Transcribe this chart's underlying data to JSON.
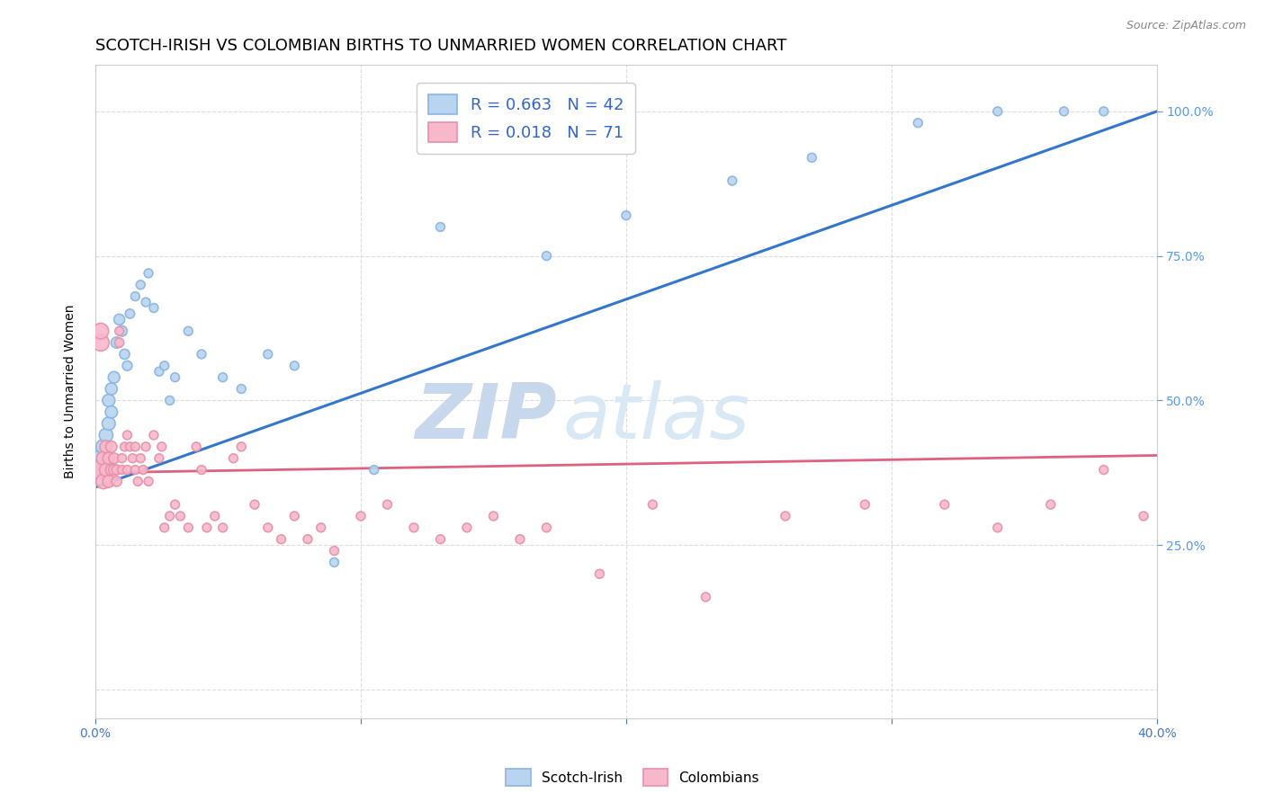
{
  "title": "SCOTCH-IRISH VS COLOMBIAN BIRTHS TO UNMARRIED WOMEN CORRELATION CHART",
  "source": "Source: ZipAtlas.com",
  "xlim": [
    0.0,
    0.4
  ],
  "ylim": [
    -0.05,
    1.08
  ],
  "watermark_zip": "ZIP",
  "watermark_atlas": "atlas",
  "series": [
    {
      "name": "Scotch-Irish",
      "R": 0.663,
      "N": 42,
      "color_fill": "#b8d4f0",
      "color_edge": "#8ab4e0",
      "trend_color": "#3377cc",
      "trend_dash": "solid",
      "x": [
        0.001,
        0.002,
        0.003,
        0.003,
        0.004,
        0.005,
        0.005,
        0.006,
        0.006,
        0.007,
        0.008,
        0.009,
        0.01,
        0.011,
        0.012,
        0.013,
        0.015,
        0.017,
        0.019,
        0.02,
        0.022,
        0.024,
        0.026,
        0.028,
        0.03,
        0.035,
        0.04,
        0.048,
        0.055,
        0.065,
        0.075,
        0.09,
        0.105,
        0.13,
        0.17,
        0.2,
        0.24,
        0.27,
        0.31,
        0.34,
        0.365,
        0.38
      ],
      "y": [
        0.38,
        0.4,
        0.38,
        0.42,
        0.44,
        0.46,
        0.5,
        0.48,
        0.52,
        0.54,
        0.6,
        0.64,
        0.62,
        0.58,
        0.56,
        0.65,
        0.68,
        0.7,
        0.67,
        0.72,
        0.66,
        0.55,
        0.56,
        0.5,
        0.54,
        0.62,
        0.58,
        0.54,
        0.52,
        0.58,
        0.56,
        0.22,
        0.38,
        0.8,
        0.75,
        0.82,
        0.88,
        0.92,
        0.98,
        1.0,
        1.0,
        1.0
      ],
      "sizes": [
        200,
        180,
        160,
        140,
        120,
        110,
        100,
        95,
        90,
        85,
        80,
        75,
        70,
        65,
        60,
        55,
        50,
        50,
        50,
        50,
        50,
        50,
        50,
        50,
        50,
        50,
        50,
        50,
        50,
        50,
        50,
        50,
        50,
        50,
        50,
        50,
        50,
        50,
        50,
        50,
        50,
        50
      ]
    },
    {
      "name": "Colombians",
      "R": 0.018,
      "N": 71,
      "color_fill": "#f8b8cc",
      "color_edge": "#e890a8",
      "trend_color": "#e06080",
      "trend_dash": "solid",
      "x": [
        0.001,
        0.002,
        0.002,
        0.003,
        0.003,
        0.004,
        0.004,
        0.005,
        0.005,
        0.006,
        0.006,
        0.007,
        0.007,
        0.008,
        0.008,
        0.009,
        0.009,
        0.01,
        0.01,
        0.011,
        0.012,
        0.012,
        0.013,
        0.014,
        0.015,
        0.015,
        0.016,
        0.017,
        0.018,
        0.019,
        0.02,
        0.022,
        0.024,
        0.025,
        0.026,
        0.028,
        0.03,
        0.032,
        0.035,
        0.038,
        0.04,
        0.042,
        0.045,
        0.048,
        0.052,
        0.055,
        0.06,
        0.065,
        0.07,
        0.075,
        0.08,
        0.085,
        0.09,
        0.1,
        0.11,
        0.12,
        0.13,
        0.14,
        0.15,
        0.16,
        0.17,
        0.19,
        0.21,
        0.23,
        0.26,
        0.29,
        0.32,
        0.34,
        0.36,
        0.38,
        0.395
      ],
      "y": [
        0.38,
        0.6,
        0.62,
        0.36,
        0.4,
        0.38,
        0.42,
        0.36,
        0.4,
        0.38,
        0.42,
        0.38,
        0.4,
        0.36,
        0.38,
        0.6,
        0.62,
        0.38,
        0.4,
        0.42,
        0.44,
        0.38,
        0.42,
        0.4,
        0.38,
        0.42,
        0.36,
        0.4,
        0.38,
        0.42,
        0.36,
        0.44,
        0.4,
        0.42,
        0.28,
        0.3,
        0.32,
        0.3,
        0.28,
        0.42,
        0.38,
        0.28,
        0.3,
        0.28,
        0.4,
        0.42,
        0.32,
        0.28,
        0.26,
        0.3,
        0.26,
        0.28,
        0.24,
        0.3,
        0.32,
        0.28,
        0.26,
        0.28,
        0.3,
        0.26,
        0.28,
        0.2,
        0.32,
        0.16,
        0.3,
        0.32,
        0.32,
        0.28,
        0.32,
        0.38,
        0.3
      ],
      "sizes": [
        200,
        180,
        160,
        140,
        120,
        110,
        100,
        95,
        90,
        85,
        80,
        75,
        70,
        65,
        60,
        55,
        50,
        50,
        50,
        50,
        50,
        50,
        50,
        50,
        50,
        50,
        50,
        50,
        50,
        50,
        50,
        50,
        50,
        50,
        50,
        50,
        50,
        50,
        50,
        50,
        50,
        50,
        50,
        50,
        50,
        50,
        50,
        50,
        50,
        50,
        50,
        50,
        50,
        50,
        50,
        50,
        50,
        50,
        50,
        50,
        50,
        50,
        50,
        50,
        50,
        50,
        50,
        50,
        50,
        50,
        50
      ]
    }
  ],
  "title_fontsize": 13,
  "axis_label_fontsize": 10,
  "tick_fontsize": 10,
  "source_fontsize": 9,
  "watermark_fontsize_zip": 62,
  "watermark_fontsize_atlas": 62,
  "watermark_color_zip": "#c8d8ec",
  "watermark_color_atlas": "#d8e8f4",
  "background_color": "#ffffff",
  "grid_color": "#dddddd",
  "right_axis_color": "#5599ee",
  "legend_R_color": "#3366cc",
  "legend_N_color": "#cc3344"
}
